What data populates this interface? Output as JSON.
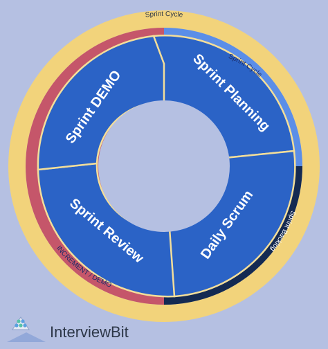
{
  "colors": {
    "background": "#b5c0e2",
    "outer_ring": "#f2d37b",
    "planning_band": "#5b8ee8",
    "backlog_band": "#142a52",
    "increment_band": "#c5566a",
    "segment_fill": "#2b63c6",
    "segment_stroke": "#f3de9a",
    "center": "#b5c0e2"
  },
  "outer_label": "Sprint Cycle",
  "bands": {
    "planning": "Sprint Cycle",
    "backlog": "Sprint Backlog",
    "increment": "INCREMENT / DEMO"
  },
  "segments": {
    "planning": "Sprint Planning",
    "daily": "Daily Scrum",
    "review": "Sprint Review",
    "demo": "Sprint DEMO"
  },
  "brand": {
    "name": "InterviewBit",
    "logo_icon": "triangle-dots-logo"
  }
}
